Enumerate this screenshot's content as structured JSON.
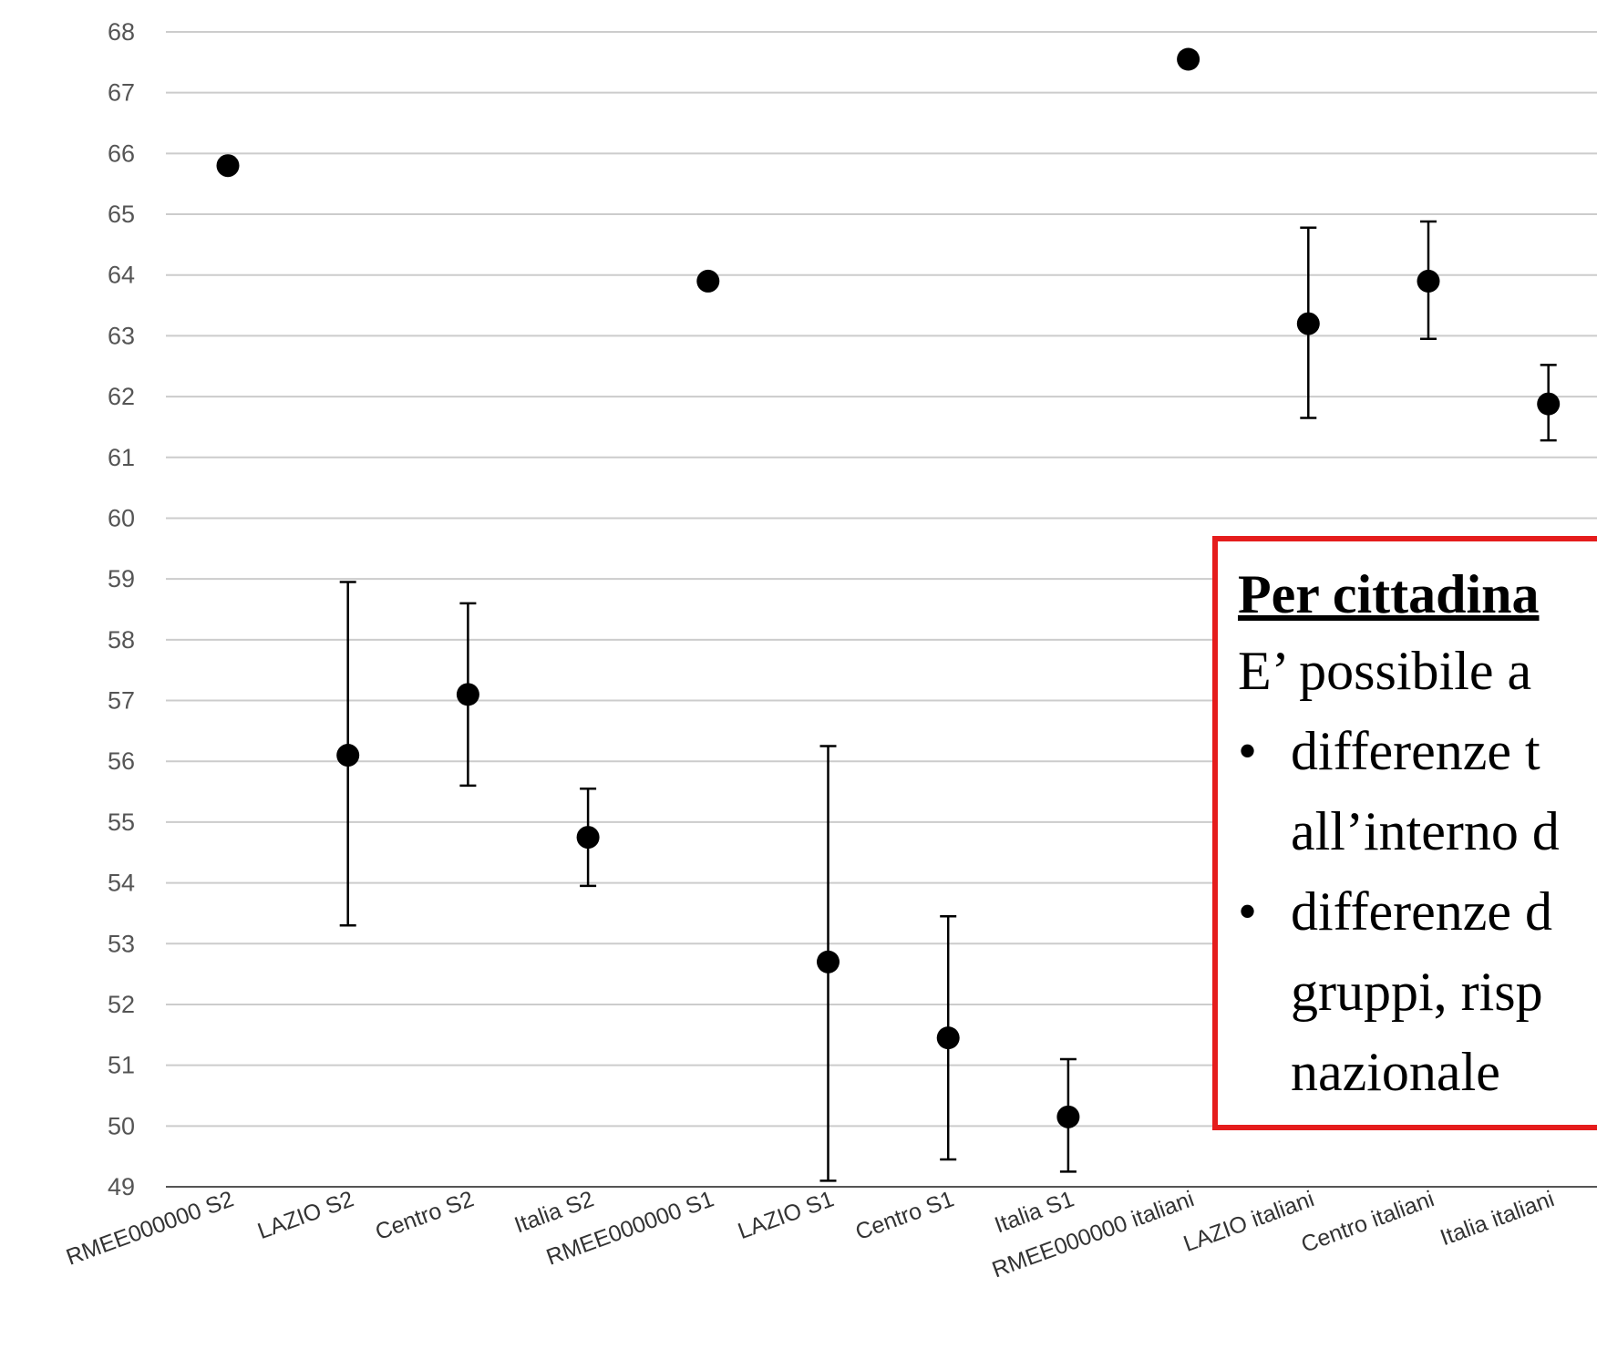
{
  "chart_data": {
    "type": "scatter",
    "error_bars": true,
    "categories": [
      "RMEE000000 S2",
      "LAZIO S2",
      "Centro S2",
      "Italia S2",
      "RMEE000000 S1",
      "LAZIO S1",
      "Centro S1",
      "Italia S1",
      "RMEE000000 italiani",
      "LAZIO italiani",
      "Centro italiani",
      "Italia italiani"
    ],
    "values": [
      65.8,
      56.1,
      57.1,
      54.75,
      63.9,
      52.7,
      51.45,
      50.15,
      67.55,
      63.2,
      63.9,
      61.88
    ],
    "error_low": [
      null,
      53.3,
      55.6,
      53.95,
      null,
      49.1,
      49.45,
      49.25,
      null,
      61.65,
      62.95,
      61.28
    ],
    "error_high": [
      null,
      58.95,
      58.6,
      55.55,
      null,
      56.25,
      53.45,
      51.1,
      null,
      64.78,
      64.88,
      62.52
    ],
    "ylim": [
      49,
      68
    ],
    "yticks": [
      49,
      50,
      51,
      52,
      53,
      54,
      55,
      56,
      57,
      58,
      59,
      60,
      61,
      62,
      63,
      64,
      65,
      66,
      67,
      68
    ],
    "grid": true,
    "colors": {
      "marker": "#000000",
      "grid": "#cccccc",
      "axis": "#555555"
    }
  },
  "annotation": {
    "title": "Per cittadina",
    "intro": "E’ possibile a",
    "bullet1_line1": "differenze t",
    "bullet1_line2": "all’interno d",
    "bullet2_line1": "differenze d",
    "bullet2_line2": "gruppi, risp",
    "bullet2_line3": "nazionale",
    "bullet_symbol": "•",
    "border_color": "#e51c1c"
  }
}
